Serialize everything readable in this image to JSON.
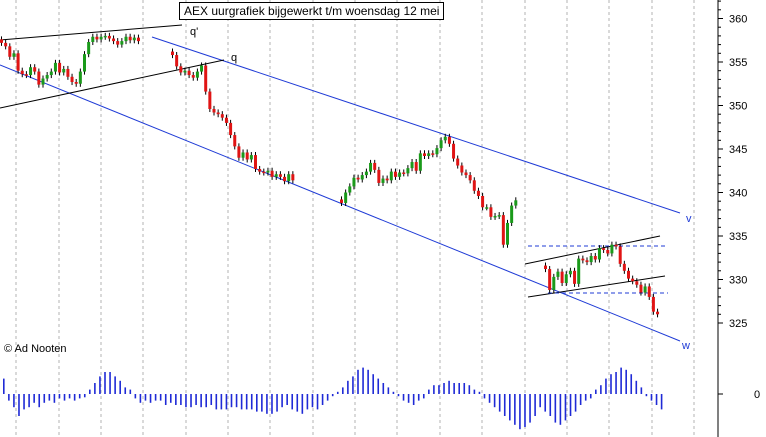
{
  "chart_data": {
    "type": "candlestick",
    "title": "AEX uurgrafiek bijgewerkt t/m woensdag 12 mei",
    "credit": "© Ad Nooten",
    "y_axis": {
      "ticks": [
        325,
        330,
        335,
        340,
        345,
        350,
        355,
        360
      ],
      "range": [
        321,
        363
      ],
      "side": "right"
    },
    "oscillator": {
      "zero_label": "0",
      "values": [
        0.7,
        -0.3,
        -0.6,
        -1.0,
        -0.7,
        -0.6,
        -0.4,
        -0.6,
        -0.4,
        -0.3,
        -0.4,
        -0.2,
        -0.3,
        -0.2,
        -0.3,
        -0.2,
        -0.15,
        0.2,
        0.5,
        0.8,
        1.0,
        1.0,
        0.8,
        0.6,
        0.3,
        0.2,
        -0.2,
        -0.4,
        -0.3,
        -0.4,
        -0.3,
        -0.3,
        -0.5,
        -0.4,
        -0.5,
        -0.5,
        -0.6,
        -0.6,
        -0.5,
        -0.6,
        -0.6,
        -0.5,
        -0.7,
        -0.7,
        -0.7,
        -0.6,
        -0.6,
        -0.7,
        -0.7,
        -0.7,
        -0.8,
        -0.8,
        -0.9,
        -0.9,
        -0.8,
        -0.6,
        -0.5,
        -0.7,
        -0.8,
        -0.9,
        -0.7,
        -0.6,
        -0.7,
        -0.5,
        -0.3,
        -0.1,
        0.1,
        0.3,
        0.6,
        0.8,
        1.1,
        1.2,
        1.1,
        0.9,
        0.7,
        0.5,
        0.3,
        0.1,
        -0.1,
        -0.3,
        -0.4,
        -0.5,
        -0.3,
        -0.2,
        0.2,
        0.4,
        0.4,
        0.5,
        0.6,
        0.5,
        0.5,
        0.5,
        0.4,
        0.2,
        0.1,
        -0.2,
        -0.4,
        -0.6,
        -0.8,
        -1.0,
        -1.2,
        -1.4,
        -1.6,
        -1.5,
        -1.3,
        -1.0,
        -0.6,
        -0.8,
        -1.0,
        -1.3,
        -1.4,
        -1.2,
        -1.0,
        -0.8,
        -0.5,
        -0.3,
        -0.2,
        0.2,
        0.4,
        0.7,
        0.9,
        1.0,
        1.2,
        1.1,
        0.9,
        0.6,
        0.3,
        -0.1,
        -0.3,
        -0.5,
        -0.7
      ]
    },
    "series": [
      {
        "name": "",
        "segment": "a",
        "close": [
          357.2,
          356.8,
          355.6,
          356.0,
          354.0,
          353.6,
          353.5,
          354.4,
          353.9,
          352.4,
          353.1,
          353.5,
          353.9,
          354.9,
          353.8,
          354.2,
          353.3,
          352.7,
          352.5,
          353.9,
          355.9,
          357.3,
          357.9,
          357.6,
          357.9,
          358.0,
          357.7,
          357.4,
          357.0,
          357.4,
          357.9,
          357.5,
          357.8,
          357.4
        ]
      },
      {
        "name": "",
        "segment": "b",
        "close": [
          355.8,
          354.5,
          353.8,
          354.0,
          353.5,
          353.2,
          353.9,
          354.6,
          351.6,
          349.6,
          349.2,
          349.0,
          348.6,
          348.0,
          346.6,
          345.3,
          344.0,
          344.6,
          343.8,
          344.3,
          342.7,
          342.4,
          342.3,
          342.5,
          341.8,
          342.1,
          341.8,
          341.3,
          342.1,
          341.4
        ]
      },
      {
        "name": "",
        "segment": "c",
        "close": [
          338.8,
          340.0,
          340.7,
          341.7,
          341.5,
          342.0,
          342.4,
          343.4,
          342.6,
          341.1,
          341.6,
          341.4,
          342.4,
          341.8,
          342.3,
          342.2,
          342.8,
          343.5,
          342.5,
          344.5,
          344.2,
          344.5,
          344.4,
          345.1,
          346.0,
          346.4,
          345.6,
          343.9,
          343.1,
          342.3,
          342.0,
          341.4,
          340.2,
          339.6,
          338.3,
          338.3,
          337.2,
          337.3,
          337.4,
          334.0,
          336.5,
          338.5,
          339.1
        ]
      },
      {
        "name": "",
        "segment": "d",
        "close": [
          331.2,
          328.8,
          330.3,
          330.9,
          329.6,
          330.6,
          331.0,
          329.5,
          332.4,
          332.2,
          332.0,
          332.7,
          332.3,
          333.6,
          333.4,
          333.0,
          334.0,
          333.8,
          331.8,
          331.0,
          330.1,
          329.8,
          329.4,
          328.5,
          329.2,
          328.0,
          326.3,
          326.0
        ]
      }
    ],
    "trendlines": [
      {
        "label": "v"
      },
      {
        "label": "w"
      },
      {
        "label": "q'"
      },
      {
        "label": "q"
      }
    ]
  }
}
